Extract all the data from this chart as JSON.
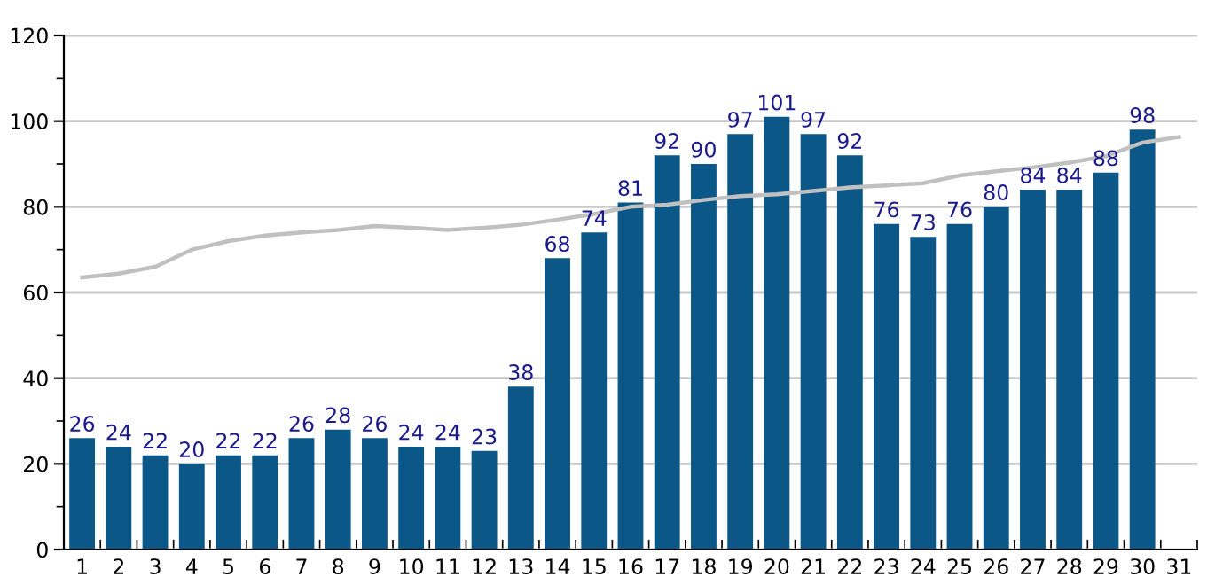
{
  "chart_data": {
    "type": "bar",
    "categories": [
      "1",
      "2",
      "3",
      "4",
      "5",
      "6",
      "7",
      "8",
      "9",
      "10",
      "11",
      "12",
      "13",
      "14",
      "15",
      "16",
      "17",
      "18",
      "19",
      "20",
      "21",
      "22",
      "23",
      "24",
      "25",
      "26",
      "27",
      "28",
      "29",
      "30",
      "31"
    ],
    "series": [
      {
        "color": "#0b5788",
        "values": [
          26,
          24,
          22,
          20,
          22,
          22,
          26,
          28,
          26,
          24,
          24,
          23,
          38,
          68,
          74,
          81,
          92,
          90,
          97,
          101,
          97,
          92,
          76,
          73,
          76,
          80,
          84,
          84,
          88,
          98,
          null
        ],
        "value_labels": [
          "26",
          "24",
          "22",
          "20",
          "22",
          "22",
          "26",
          "28",
          "26",
          "24",
          "24",
          "23",
          "38",
          "68",
          "74",
          "81",
          "92",
          "90",
          "97",
          "101",
          "97",
          "92",
          "76",
          "73",
          "76",
          "80",
          "84",
          "84",
          "88",
          "98",
          null
        ]
      },
      {
        "type": "line",
        "color": "#c0c0c0",
        "values": [
          63.5,
          64.4,
          66,
          70,
          72,
          73.3,
          74,
          74.6,
          75.5,
          75.1,
          74.6,
          75.1,
          75.8,
          77,
          78.3,
          80,
          80.5,
          81.6,
          82.5,
          82.9,
          83.7,
          84.5,
          85,
          85.5,
          87.3,
          88.3,
          89.2,
          90.3,
          91.8,
          95,
          96.3
        ]
      }
    ],
    "ylim": [
      0,
      120
    ],
    "yticks": [
      0,
      {
        "value": 10,
        "label": null
      },
      20,
      {
        "value": 30,
        "label": null
      },
      40,
      {
        "value": 50,
        "label": null
      },
      60,
      {
        "value": 70,
        "label": null
      },
      80,
      {
        "value": 90,
        "label": null
      },
      100,
      {
        "value": 110,
        "label": null
      },
      120
    ],
    "grid": "y",
    "marker": "none"
  }
}
